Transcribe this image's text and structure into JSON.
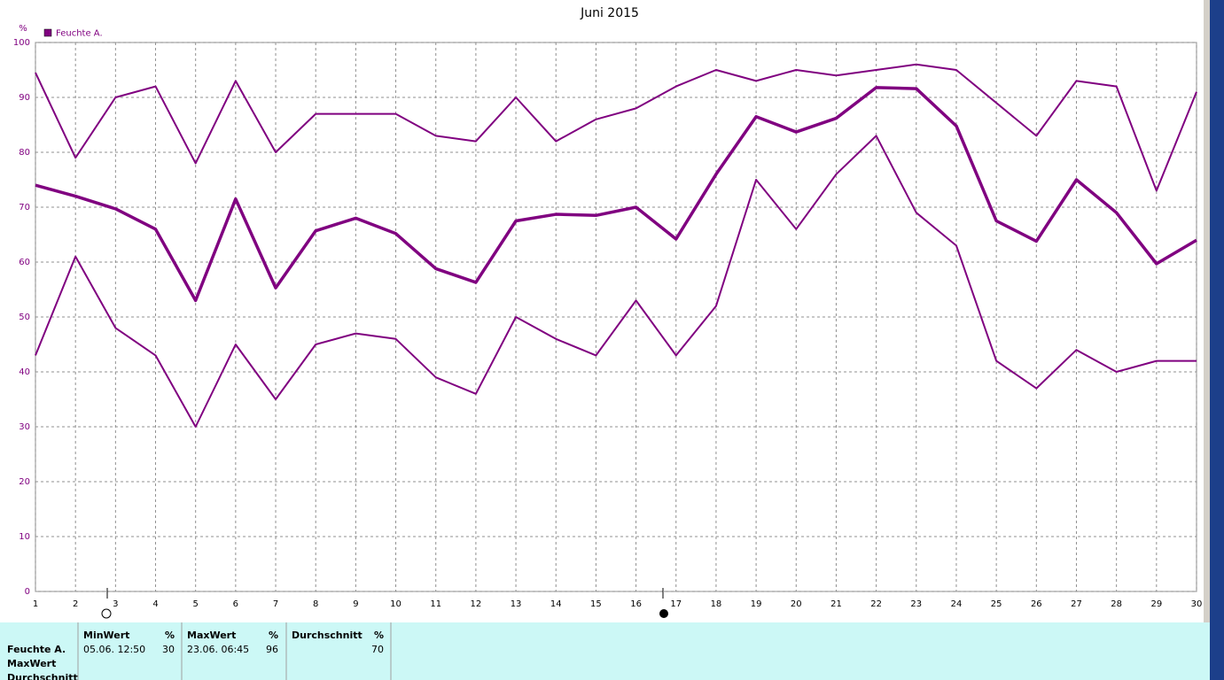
{
  "chart_data": {
    "type": "line",
    "title": "Juni 2015",
    "y_unit": "%",
    "legend": "Feuchte A.",
    "x": [
      1,
      2,
      3,
      4,
      5,
      6,
      7,
      8,
      9,
      10,
      11,
      12,
      13,
      14,
      15,
      16,
      17,
      18,
      19,
      20,
      21,
      22,
      23,
      24,
      25,
      26,
      27,
      28,
      29,
      30
    ],
    "series": [
      {
        "color": "#800080",
        "width": 2,
        "values": [
          94.5,
          79,
          90,
          92,
          78,
          93,
          80,
          87,
          87,
          87,
          83,
          82,
          90,
          82,
          86,
          88,
          92,
          95,
          93,
          95,
          94,
          95,
          96,
          95,
          89,
          83,
          93,
          92,
          73,
          91
        ]
      },
      {
        "color": "#800080",
        "width": 3.5,
        "values": [
          74,
          72,
          69.7,
          66,
          53,
          71.5,
          55.3,
          65.7,
          68,
          65.2,
          58.8,
          56.3,
          67.5,
          68.7,
          68.5,
          70,
          64.2,
          76,
          86.5,
          83.7,
          86.2,
          91.8,
          91.6,
          84.8,
          67.5,
          63.8,
          75,
          69,
          59.7,
          64
        ]
      },
      {
        "color": "#800080",
        "width": 2,
        "values": [
          43,
          61,
          48,
          43,
          30,
          45,
          35,
          45,
          47,
          46,
          39,
          36,
          50,
          46,
          43,
          53,
          43,
          52,
          75,
          66,
          76,
          83,
          69,
          63,
          42,
          37,
          44,
          40,
          42,
          42
        ]
      }
    ],
    "xlim": [
      1,
      30
    ],
    "xticks": [
      1,
      2,
      3,
      4,
      5,
      6,
      7,
      8,
      9,
      10,
      11,
      12,
      13,
      14,
      15,
      16,
      17,
      18,
      19,
      20,
      21,
      22,
      23,
      24,
      25,
      26,
      27,
      28,
      29,
      30
    ],
    "ylim": [
      0,
      100
    ],
    "yticks": [
      0,
      10,
      20,
      30,
      40,
      50,
      60,
      70,
      80,
      90,
      100
    ],
    "grid": true
  },
  "stats": {
    "row_labels": [
      "Feuchte A.",
      "MaxWert",
      "Durchschnitt"
    ],
    "columns": [
      {
        "header": "MinWert",
        "unit": "%",
        "time": "05.06.  12:50",
        "value": 30
      },
      {
        "header": "MaxWert",
        "unit": "%",
        "time": "23.06.  06:45",
        "value": 96
      },
      {
        "header": "Durchschnitt",
        "unit": "%",
        "value": 70
      }
    ]
  }
}
